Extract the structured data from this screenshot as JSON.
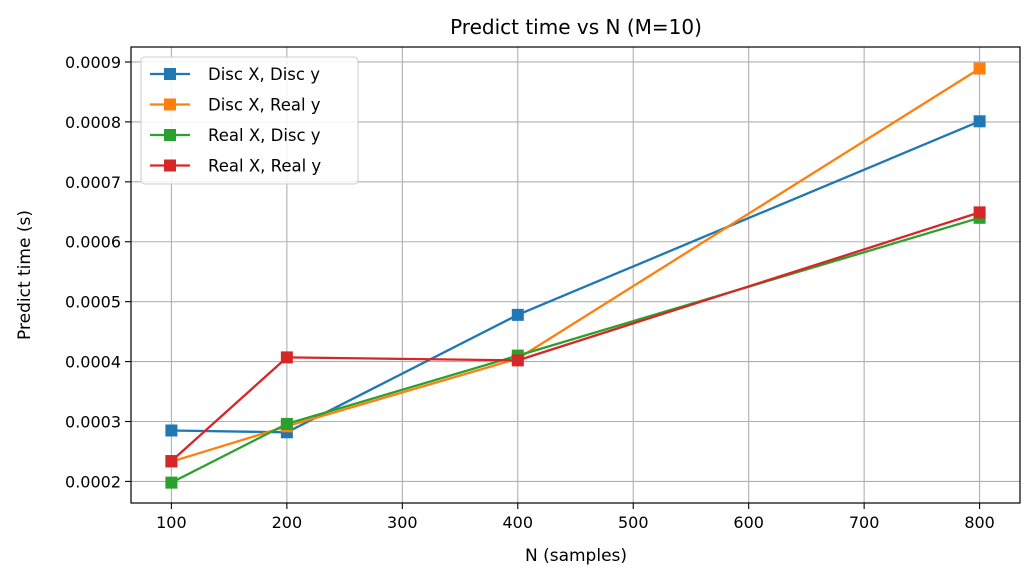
{
  "chart_data": {
    "type": "line",
    "title": "Predict time vs N (M=10)",
    "xlabel": "N (samples)",
    "ylabel": "Predict time (s)",
    "xlim": [
      65,
      835
    ],
    "ylim": [
      0.000164,
      0.000925
    ],
    "xticks": [
      100,
      200,
      300,
      400,
      500,
      600,
      700,
      800
    ],
    "xtick_labels": [
      "100",
      "200",
      "300",
      "400",
      "500",
      "600",
      "700",
      "800"
    ],
    "yticks": [
      0.0002,
      0.0003,
      0.0004,
      0.0005,
      0.0006,
      0.0007,
      0.0008,
      0.0009
    ],
    "ytick_labels": [
      "0.0002",
      "0.0003",
      "0.0004",
      "0.0005",
      "0.0006",
      "0.0007",
      "0.0008",
      "0.0009"
    ],
    "grid": true,
    "legend_position": "top-left",
    "marker": "square",
    "x": [
      100,
      200,
      400,
      800
    ],
    "series": [
      {
        "name": "Disc X, Disc y",
        "color": "#1f77b4",
        "values": [
          0.000285,
          0.000282,
          0.000478,
          0.000801
        ]
      },
      {
        "name": "Disc X, Real y",
        "color": "#ff7f0e",
        "values": [
          0.000233,
          0.000292,
          0.000405,
          0.000889
        ]
      },
      {
        "name": "Real X, Disc y",
        "color": "#2ca02c",
        "values": [
          0.000198,
          0.000296,
          0.00041,
          0.00064
        ]
      },
      {
        "name": "Real X, Real y",
        "color": "#d62728",
        "values": [
          0.000234,
          0.000407,
          0.000402,
          0.000649
        ]
      }
    ]
  }
}
